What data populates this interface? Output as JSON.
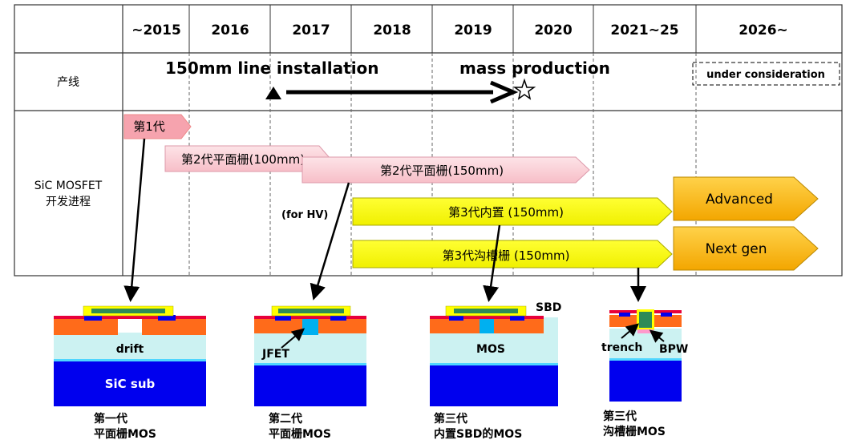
{
  "header": {
    "years": [
      "~2015",
      "2016",
      "2017",
      "2018",
      "2019",
      "2020",
      "2021~25",
      "2026~"
    ]
  },
  "rows": {
    "line_label": "产线",
    "mosfet_label_1": "SiC MOSFET",
    "mosfet_label_2": "开发进程"
  },
  "line_row": {
    "install_text": "150mm line installation",
    "mass_text": "mass production",
    "consider_text": "under consideration"
  },
  "arrows": {
    "gen1": "第1代",
    "gen2_100": "第2代平面栅(100mm)",
    "gen2_150": "第2代平面栅(150mm)",
    "gen3_sbd": "第3代内置 (150mm)",
    "gen3_trench": "第3代沟槽栅 (150mm)",
    "advanced": "Advanced",
    "next_gen": "Next gen",
    "for_hv": "(for HV)"
  },
  "devices": {
    "d1_drift": "drift",
    "d1_sub": "SiC sub",
    "d2_jfet": "JFET",
    "d3_sbd": "SBD",
    "d3_mos": "MOS",
    "d4_trench": "trench",
    "d4_bpw": "BPW"
  },
  "captions": {
    "c1_line1": "第一代",
    "c1_line2": "平面栅MOS",
    "c2_line1": "第二代",
    "c2_line2": "平面栅MOS",
    "c3_line1": "第三代",
    "c3_line2": "内置SBD的MOS",
    "c4_line1": "第三代",
    "c4_line2": "沟槽栅MOS"
  },
  "colors": {
    "pink_fill": "#f8c8d0",
    "pink_dark": "#ee8088",
    "yellow_fill": "#ffff00",
    "gold_fill": "#ffc000",
    "substrate_blue": "#0000ee",
    "drift_cyan": "#ccf2f2",
    "orange": "#ff6b1a"
  }
}
